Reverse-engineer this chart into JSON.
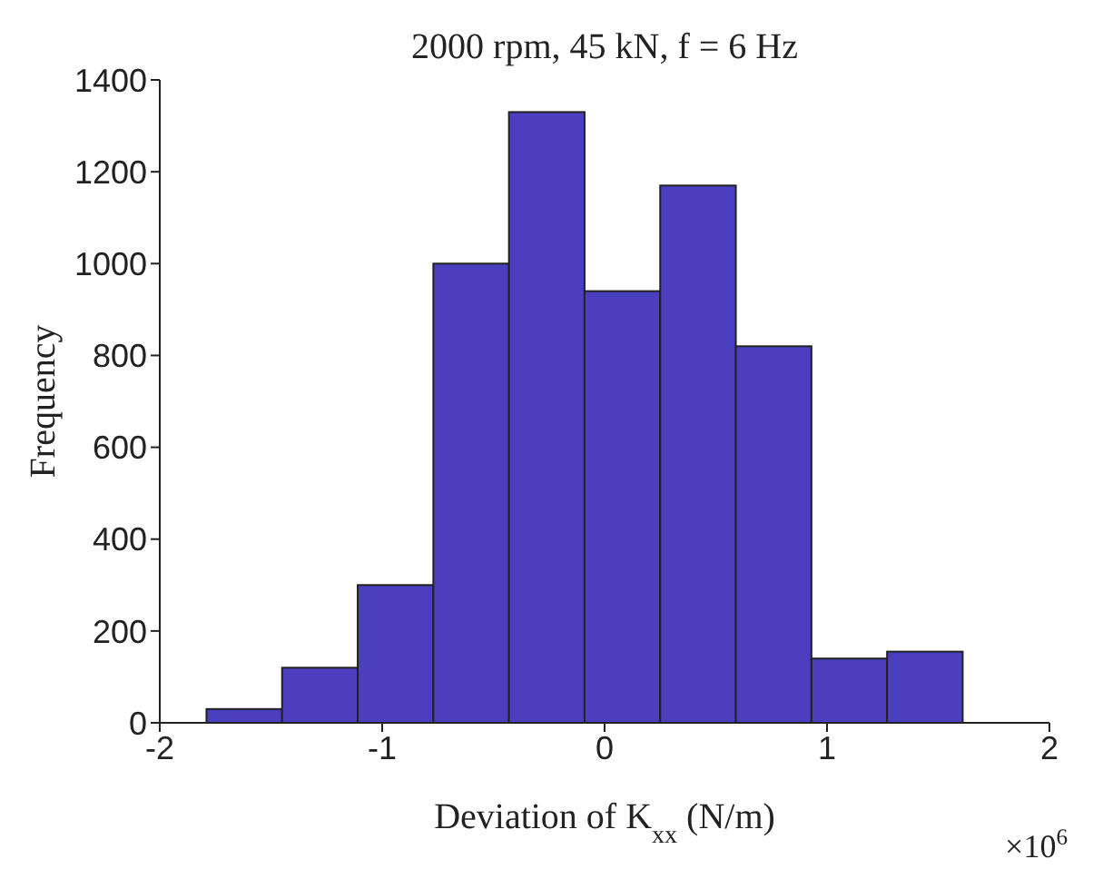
{
  "chart_data": {
    "type": "histogram",
    "title": "2000 rpm, 45 kN, f = 6 Hz",
    "xlabel": "Deviation of K$_{xx}$ (N/m)",
    "ylabel": "Frequency",
    "annotations": [
      "×10$^{6}$"
    ],
    "bins": [
      -1.79,
      -1.45,
      -1.11,
      -0.77,
      -0.43,
      -0.09,
      0.25,
      0.59,
      0.93,
      1.27,
      1.61
    ],
    "values": [
      30,
      120,
      300,
      1000,
      1330,
      940,
      1170,
      820,
      140,
      155
    ],
    "color": "#4a3fbf",
    "xlim": [
      -2,
      2
    ],
    "xticks": [
      -2,
      -1,
      0,
      1,
      2
    ],
    "ylim": [
      0,
      1400
    ],
    "yticks": [
      0,
      200,
      400,
      600,
      800,
      1000,
      1200,
      1400
    ]
  }
}
